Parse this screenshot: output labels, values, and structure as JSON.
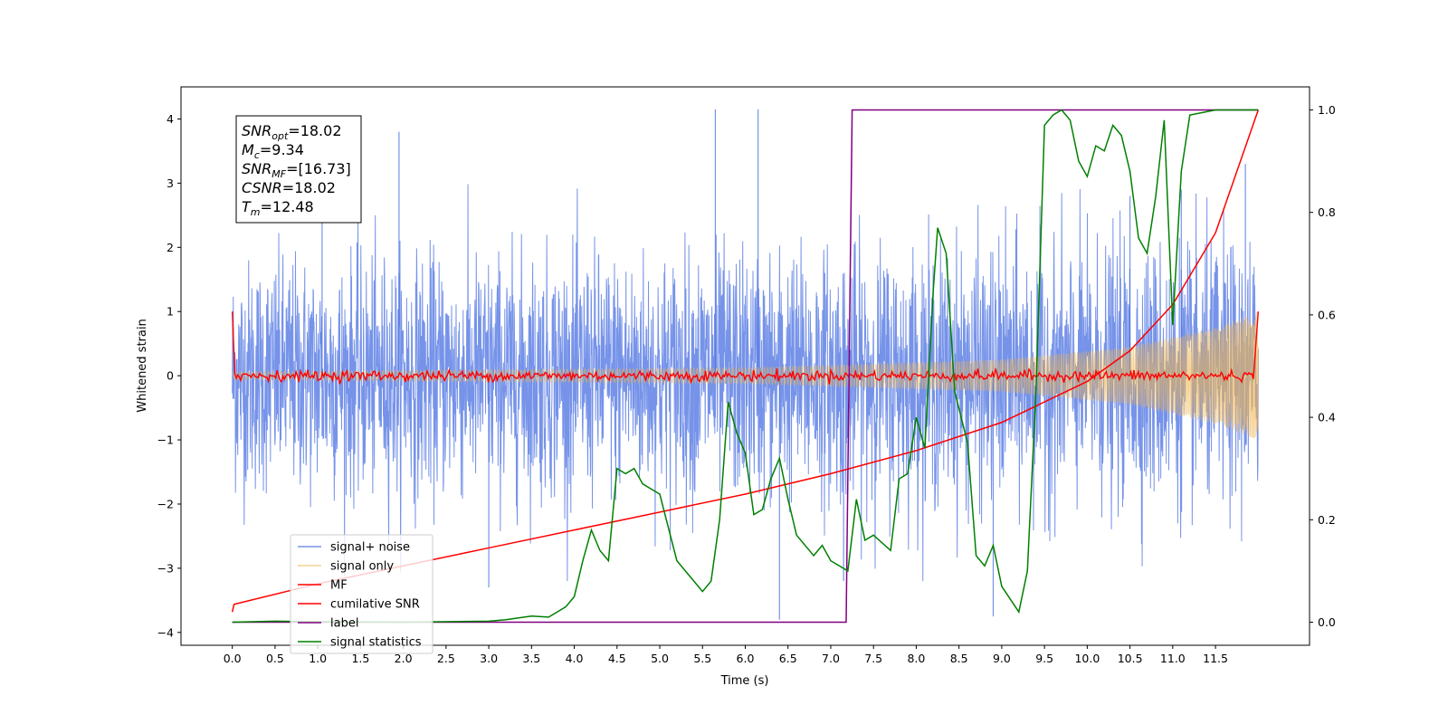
{
  "chart_data": {
    "type": "line",
    "title": "",
    "xlabel": "Time (s)",
    "ylabel": "Whitened strain",
    "xlim": [
      -0.6,
      12.6
    ],
    "ylim": [
      -4.2,
      4.5
    ],
    "y2lim": [
      -0.045,
      1.045
    ],
    "x_ticks": [
      0.0,
      0.5,
      1.0,
      1.5,
      2.0,
      2.5,
      3.0,
      3.5,
      4.0,
      4.5,
      5.0,
      5.5,
      6.0,
      6.5,
      7.0,
      7.5,
      8.0,
      8.5,
      9.0,
      9.5,
      10.0,
      10.5,
      11.0,
      11.5
    ],
    "x_tick_labels": [
      "0.0",
      "0.5",
      "1.0",
      "1.5",
      "2.0",
      "2.5",
      "3.0",
      "3.5",
      "4.0",
      "4.5",
      "5.0",
      "5.5",
      "6.0",
      "6.5",
      "7.0",
      "7.5",
      "8.0",
      "8.5",
      "9.0",
      "9.5",
      "10.0",
      "10.5",
      "11.0",
      "11.5"
    ],
    "y_ticks": [
      -4,
      -3,
      -2,
      -1,
      0,
      1,
      2,
      3,
      4
    ],
    "y_tick_labels": [
      "−4",
      "−3",
      "−2",
      "−1",
      "0",
      "1",
      "2",
      "3",
      "4"
    ],
    "y2_ticks": [
      0.0,
      0.2,
      0.4,
      0.6,
      0.8,
      1.0
    ],
    "y2_tick_labels": [
      "0.0",
      "0.2",
      "0.4",
      "0.6",
      "0.8",
      "1.0"
    ],
    "grid": false,
    "legend_position": "lower-left",
    "annotation": {
      "lines": [
        {
          "base": "SNR",
          "sub": "opt",
          "value": "=18.02"
        },
        {
          "base": "M",
          "sub": "c",
          "value": "=9.34"
        },
        {
          "base": "SNR",
          "sub": "MF",
          "value": "=[16.73]"
        },
        {
          "base": "CSNR",
          "sub": "",
          "value": "=18.02"
        },
        {
          "base": "T",
          "sub": "m",
          "value": "=12.48"
        }
      ]
    },
    "series": [
      {
        "name": "signal+ noise",
        "color": "#4169e1",
        "axis": "left",
        "kind": "noise",
        "x_range": [
          0.0,
          12.0
        ],
        "envelope": [
          [
            0.0,
            2.3
          ],
          [
            4.0,
            2.4
          ],
          [
            8.0,
            2.5
          ],
          [
            12.0,
            2.6
          ]
        ],
        "peaks": [
          [
            1.05,
            2.65
          ],
          [
            1.95,
            3.8
          ],
          [
            5.65,
            4.15
          ],
          [
            6.15,
            4.15
          ],
          [
            10.5,
            2.8
          ],
          [
            11.1,
            2.9
          ],
          [
            11.85,
            3.3
          ],
          [
            3.0,
            -3.3
          ],
          [
            6.4,
            -3.8
          ],
          [
            8.9,
            -3.75
          ],
          [
            7.15,
            -3.2
          ]
        ]
      },
      {
        "name": "signal only",
        "color": "#f0b44f",
        "axis": "left",
        "kind": "chirp",
        "amplitude": [
          [
            0.0,
            0.06
          ],
          [
            6.0,
            0.12
          ],
          [
            9.0,
            0.25
          ],
          [
            10.5,
            0.45
          ],
          [
            11.5,
            0.75
          ],
          [
            12.0,
            1.0
          ]
        ]
      },
      {
        "name": "MF",
        "color": "#ff0000",
        "axis": "left",
        "kind": "mf",
        "x_range": [
          0.0,
          12.0
        ],
        "start_value": 1.0,
        "end_value": 1.0,
        "noise_level": 0.04
      },
      {
        "name": "cumilative SNR",
        "color": "#ff0000",
        "axis": "right",
        "x": [
          0.0,
          0.02,
          1.0,
          2.0,
          3.0,
          4.0,
          5.0,
          6.0,
          7.0,
          8.0,
          9.0,
          10.0,
          10.5,
          11.0,
          11.5,
          12.0
        ],
        "y": [
          0.02,
          0.035,
          0.075,
          0.11,
          0.145,
          0.18,
          0.215,
          0.25,
          0.29,
          0.335,
          0.39,
          0.47,
          0.53,
          0.62,
          0.76,
          1.0
        ]
      },
      {
        "name": "label",
        "color": "#800080",
        "axis": "right",
        "x": [
          0.0,
          7.18,
          7.25,
          12.0
        ],
        "y": [
          0.0,
          0.0,
          1.0,
          1.0
        ]
      },
      {
        "name": "signal statistics",
        "color": "#008000",
        "axis": "right",
        "x": [
          0.0,
          0.5,
          1.0,
          2.0,
          3.0,
          3.2,
          3.5,
          3.7,
          3.8,
          3.9,
          4.0,
          4.1,
          4.2,
          4.3,
          4.4,
          4.5,
          4.6,
          4.7,
          4.8,
          4.9,
          5.0,
          5.2,
          5.4,
          5.5,
          5.6,
          5.7,
          5.8,
          5.9,
          6.0,
          6.1,
          6.2,
          6.3,
          6.4,
          6.5,
          6.6,
          6.8,
          6.9,
          7.0,
          7.1,
          7.2,
          7.3,
          7.4,
          7.5,
          7.7,
          7.8,
          7.9,
          8.0,
          8.1,
          8.2,
          8.25,
          8.35,
          8.45,
          8.6,
          8.7,
          8.8,
          8.9,
          9.0,
          9.2,
          9.3,
          9.4,
          9.5,
          9.6,
          9.7,
          9.8,
          9.9,
          10.0,
          10.1,
          10.2,
          10.3,
          10.4,
          10.5,
          10.6,
          10.7,
          10.8,
          10.9,
          11.0,
          11.1,
          11.2,
          11.5,
          12.0
        ],
        "y": [
          0.0,
          0.002,
          0.001,
          0.0,
          0.002,
          0.005,
          0.012,
          0.01,
          0.02,
          0.03,
          0.05,
          0.12,
          0.18,
          0.14,
          0.12,
          0.3,
          0.29,
          0.3,
          0.27,
          0.26,
          0.25,
          0.12,
          0.08,
          0.06,
          0.08,
          0.2,
          0.43,
          0.37,
          0.33,
          0.21,
          0.22,
          0.28,
          0.32,
          0.24,
          0.17,
          0.13,
          0.15,
          0.12,
          0.11,
          0.1,
          0.24,
          0.16,
          0.17,
          0.14,
          0.28,
          0.29,
          0.4,
          0.34,
          0.65,
          0.77,
          0.72,
          0.45,
          0.35,
          0.13,
          0.11,
          0.15,
          0.07,
          0.02,
          0.1,
          0.45,
          0.97,
          0.99,
          1.0,
          0.98,
          0.9,
          0.87,
          0.93,
          0.92,
          0.97,
          0.95,
          0.88,
          0.75,
          0.72,
          0.83,
          0.98,
          0.58,
          0.88,
          0.99,
          1.0,
          1.0
        ]
      }
    ]
  }
}
